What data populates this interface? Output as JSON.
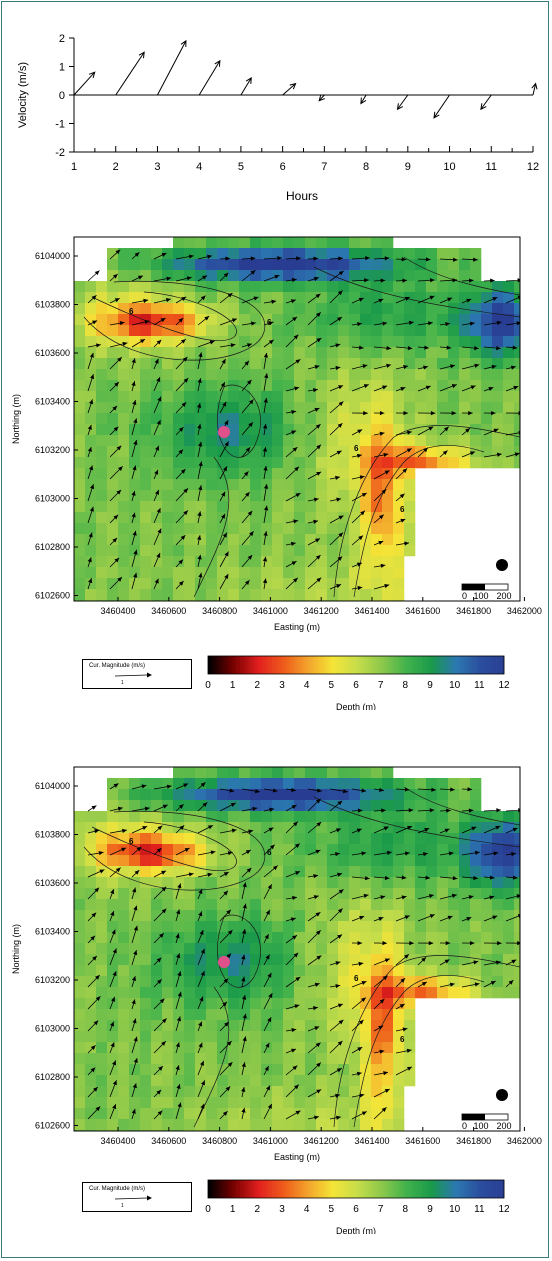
{
  "chart_data": [
    {
      "type": "quiver",
      "xlabel": "Hours",
      "ylabel": "Velocity (m/s)",
      "xlim": [
        1,
        12
      ],
      "ylim": [
        -2,
        2
      ],
      "xticks": [
        "1",
        "2",
        "3",
        "4",
        "5",
        "6",
        "7",
        "8",
        "9",
        "10",
        "11",
        "12"
      ],
      "yticks": [
        "2",
        "1",
        "0",
        "-1",
        "-2"
      ],
      "vectors": [
        {
          "t": 1.0,
          "u": 0.8,
          "v": 0.8
        },
        {
          "t": 2.0,
          "u": 1.1,
          "v": 1.5
        },
        {
          "t": 3.0,
          "u": 1.1,
          "v": 1.9
        },
        {
          "t": 4.0,
          "u": 0.8,
          "v": 1.2
        },
        {
          "t": 5.0,
          "u": 0.4,
          "v": 0.6
        },
        {
          "t": 6.0,
          "u": 0.5,
          "v": 0.4
        },
        {
          "t": 7.0,
          "u": -0.2,
          "v": -0.2
        },
        {
          "t": 8.0,
          "u": -0.2,
          "v": -0.3
        },
        {
          "t": 9.0,
          "u": -0.4,
          "v": -0.5
        },
        {
          "t": 10.0,
          "u": -0.6,
          "v": -0.8
        },
        {
          "t": 11.0,
          "u": -0.4,
          "v": -0.5
        },
        {
          "t": 12.0,
          "u": 0.1,
          "v": 0.4
        }
      ]
    },
    {
      "type": "heatmap",
      "xlabel": "Easting (m)",
      "ylabel": "Northing (m)",
      "xticks": [
        "3460400",
        "3460600",
        "3460800",
        "3461000",
        "3461200",
        "3461400",
        "3461600",
        "3461800",
        "3462000"
      ],
      "yticks": [
        "6104000",
        "6103800",
        "6103600",
        "6103400",
        "6103200",
        "6103000",
        "6102800",
        "6102600"
      ],
      "contour_labels": [
        "6",
        "6",
        "6",
        "6"
      ],
      "scale_bar_labels": [
        "0",
        "100",
        "200"
      ],
      "vector_legend_title": "Cur. Magnitude (m/s)",
      "vector_legend_value": "1",
      "colorbar_label": "Depth (m)",
      "colorbar_ticks": [
        "0",
        "1",
        "2",
        "3",
        "4",
        "5",
        "6",
        "7",
        "8",
        "9",
        "10",
        "11",
        "12"
      ]
    },
    {
      "type": "heatmap",
      "xlabel": "Easting (m)",
      "ylabel": "Northing (m)",
      "xticks": [
        "3460400",
        "3460600",
        "3460800",
        "3461000",
        "3461200",
        "3461400",
        "3461600",
        "3461800",
        "3462000"
      ],
      "yticks": [
        "6104000",
        "6103800",
        "6103600",
        "6103400",
        "6103200",
        "6103000",
        "6102800",
        "6102600"
      ],
      "contour_labels": [
        "6",
        "6",
        "6",
        "6"
      ],
      "scale_bar_labels": [
        "0",
        "100",
        "200"
      ],
      "vector_legend_title": "Cur. Magnitude (m/s)",
      "vector_legend_value": "1",
      "colorbar_label": "Depth (m)",
      "colorbar_ticks": [
        "0",
        "1",
        "2",
        "3",
        "4",
        "5",
        "6",
        "7",
        "8",
        "9",
        "10",
        "11",
        "12"
      ]
    }
  ],
  "colors": {
    "frame": "#3b7a7e",
    "depth_ramp": [
      "#000000",
      "#7a0000",
      "#e21f1f",
      "#ee5a1a",
      "#f3a32b",
      "#f5e437",
      "#c7dd4a",
      "#8cc84a",
      "#42b24c",
      "#1a9a4a",
      "#2b77b0",
      "#2b4e9e",
      "#283c92"
    ],
    "marker": "#e0508a"
  }
}
